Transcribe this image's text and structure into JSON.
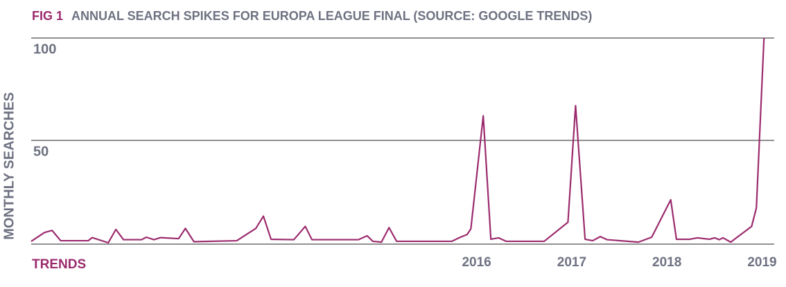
{
  "chart_data": {
    "type": "line",
    "fig_label": "FIG 1",
    "title": "ANNUAL SEARCH SPIKES FOR EUROPA LEAGUE FINAL (SOURCE: GOOGLE TRENDS)",
    "y_label": "MONTHLY SEARCHES",
    "x_label": "TRENDS",
    "x": [
      2011.32,
      2011.46,
      2011.54,
      2011.63,
      2011.92,
      2011.96,
      2012.13,
      2012.21,
      2012.29,
      2012.48,
      2012.53,
      2012.61,
      2012.68,
      2012.87,
      2012.94,
      2013.03,
      2013.48,
      2013.68,
      2013.76,
      2013.84,
      2014.08,
      2014.2,
      2014.27,
      2014.76,
      2014.85,
      2014.91,
      2015.0,
      2015.08,
      2015.16,
      2015.74,
      2015.83,
      2015.9,
      2015.94,
      2016.07,
      2016.15,
      2016.23,
      2016.31,
      2016.71,
      2016.96,
      2017.04,
      2017.14,
      2017.22,
      2017.3,
      2017.37,
      2017.7,
      2017.84,
      2018.04,
      2018.1,
      2018.24,
      2018.32,
      2018.39,
      2018.45,
      2018.5,
      2018.55,
      2018.59,
      2018.67,
      2018.89,
      2018.94,
      2019.02
    ],
    "series": [
      {
        "color": "#9b2a6d",
        "values": [
          0.7,
          5,
          6,
          1,
          1,
          2.5,
          0,
          6.5,
          1.5,
          1.5,
          2.7,
          1.5,
          2.5,
          2,
          7,
          0.5,
          1,
          7,
          13,
          1.7,
          1.5,
          8,
          1.5,
          1.5,
          3.4,
          0.7,
          0.3,
          7.4,
          0.7,
          0.7,
          2.7,
          4,
          6.8,
          62,
          1.7,
          2.4,
          0.7,
          0.7,
          10,
          67,
          1.7,
          1,
          3,
          1.5,
          0.3,
          2.7,
          21,
          1.7,
          1.7,
          2.4,
          2,
          1.7,
          2.4,
          1.5,
          2.4,
          0.3,
          8,
          17,
          100
        ]
      }
    ],
    "xlim": [
      2011.32,
      2019.04
    ],
    "xticks": [
      2016,
      2017,
      2018,
      2019
    ],
    "ylim": [
      0,
      100
    ],
    "yticks": [
      50,
      100
    ],
    "grid": true
  }
}
